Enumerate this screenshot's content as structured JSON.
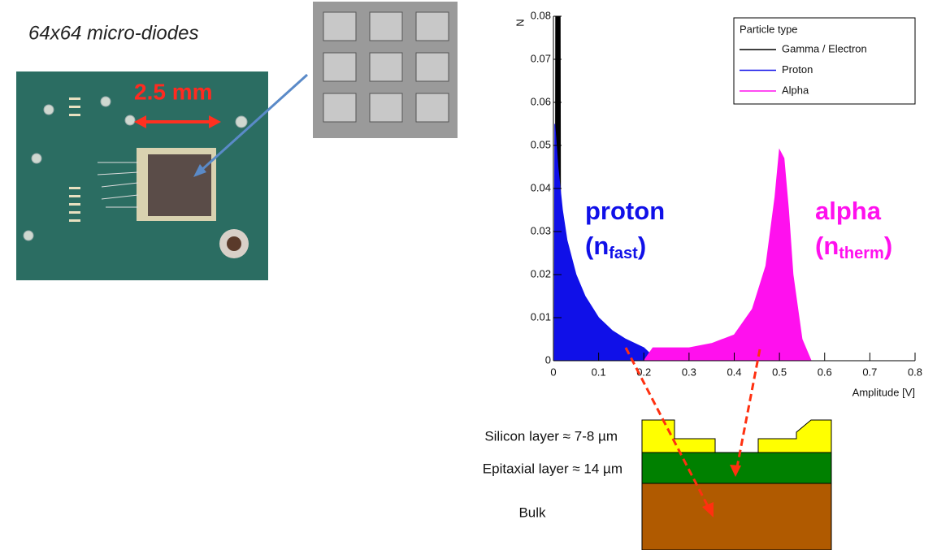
{
  "photo_caption": "64x64 micro-diodes",
  "scale_label": "2.5 mm",
  "layers": [
    "Silicon layer ≈ 7-8 µm",
    "Epitaxial layer ≈ 14 µm",
    "Bulk"
  ],
  "chart_data": {
    "type": "area",
    "y_label": "N",
    "x_label": "Amplitude [V]",
    "xlim": [
      0,
      0.8
    ],
    "xticks": [
      0,
      0.1,
      0.2,
      0.3,
      0.4,
      0.5,
      0.6,
      0.7,
      0.8
    ],
    "ylim": [
      0,
      0.08
    ],
    "yticks": [
      0,
      0.01,
      0.02,
      0.03,
      0.04,
      0.05,
      0.06,
      0.07,
      0.08
    ],
    "legend_title": "Particle type",
    "legend_position": "upper right",
    "series": [
      {
        "name": "Gamma / Electron",
        "color": "#000000",
        "x": [
          0.004,
          0.005,
          0.015,
          0.016,
          0.02,
          0.021
        ],
        "values": [
          0,
          0.08,
          0.08,
          0.015,
          0.015,
          0
        ]
      },
      {
        "name": "Proton",
        "color": "#1010e8",
        "x": [
          0.002,
          0.003,
          0.01,
          0.02,
          0.03,
          0.05,
          0.07,
          0.1,
          0.13,
          0.16,
          0.2,
          0.23
        ],
        "values": [
          0,
          0.055,
          0.045,
          0.035,
          0.028,
          0.02,
          0.015,
          0.01,
          0.007,
          0.005,
          0.003,
          0
        ]
      },
      {
        "name": "Alpha",
        "color": "#ff10ee",
        "x": [
          0.2,
          0.22,
          0.3,
          0.35,
          0.4,
          0.44,
          0.47,
          0.49,
          0.5,
          0.51,
          0.52,
          0.53,
          0.55,
          0.57
        ],
        "values": [
          0,
          0.003,
          0.003,
          0.004,
          0.006,
          0.012,
          0.022,
          0.038,
          0.049,
          0.047,
          0.035,
          0.02,
          0.005,
          0
        ]
      }
    ],
    "annotations": [
      {
        "text": "proton",
        "open": "(n",
        "sub": "fast",
        "close": ")",
        "color": "#1010e8"
      },
      {
        "text": "alpha",
        "open": "(n",
        "sub": "therm",
        "close": ")",
        "color": "#ff10ee"
      }
    ]
  }
}
